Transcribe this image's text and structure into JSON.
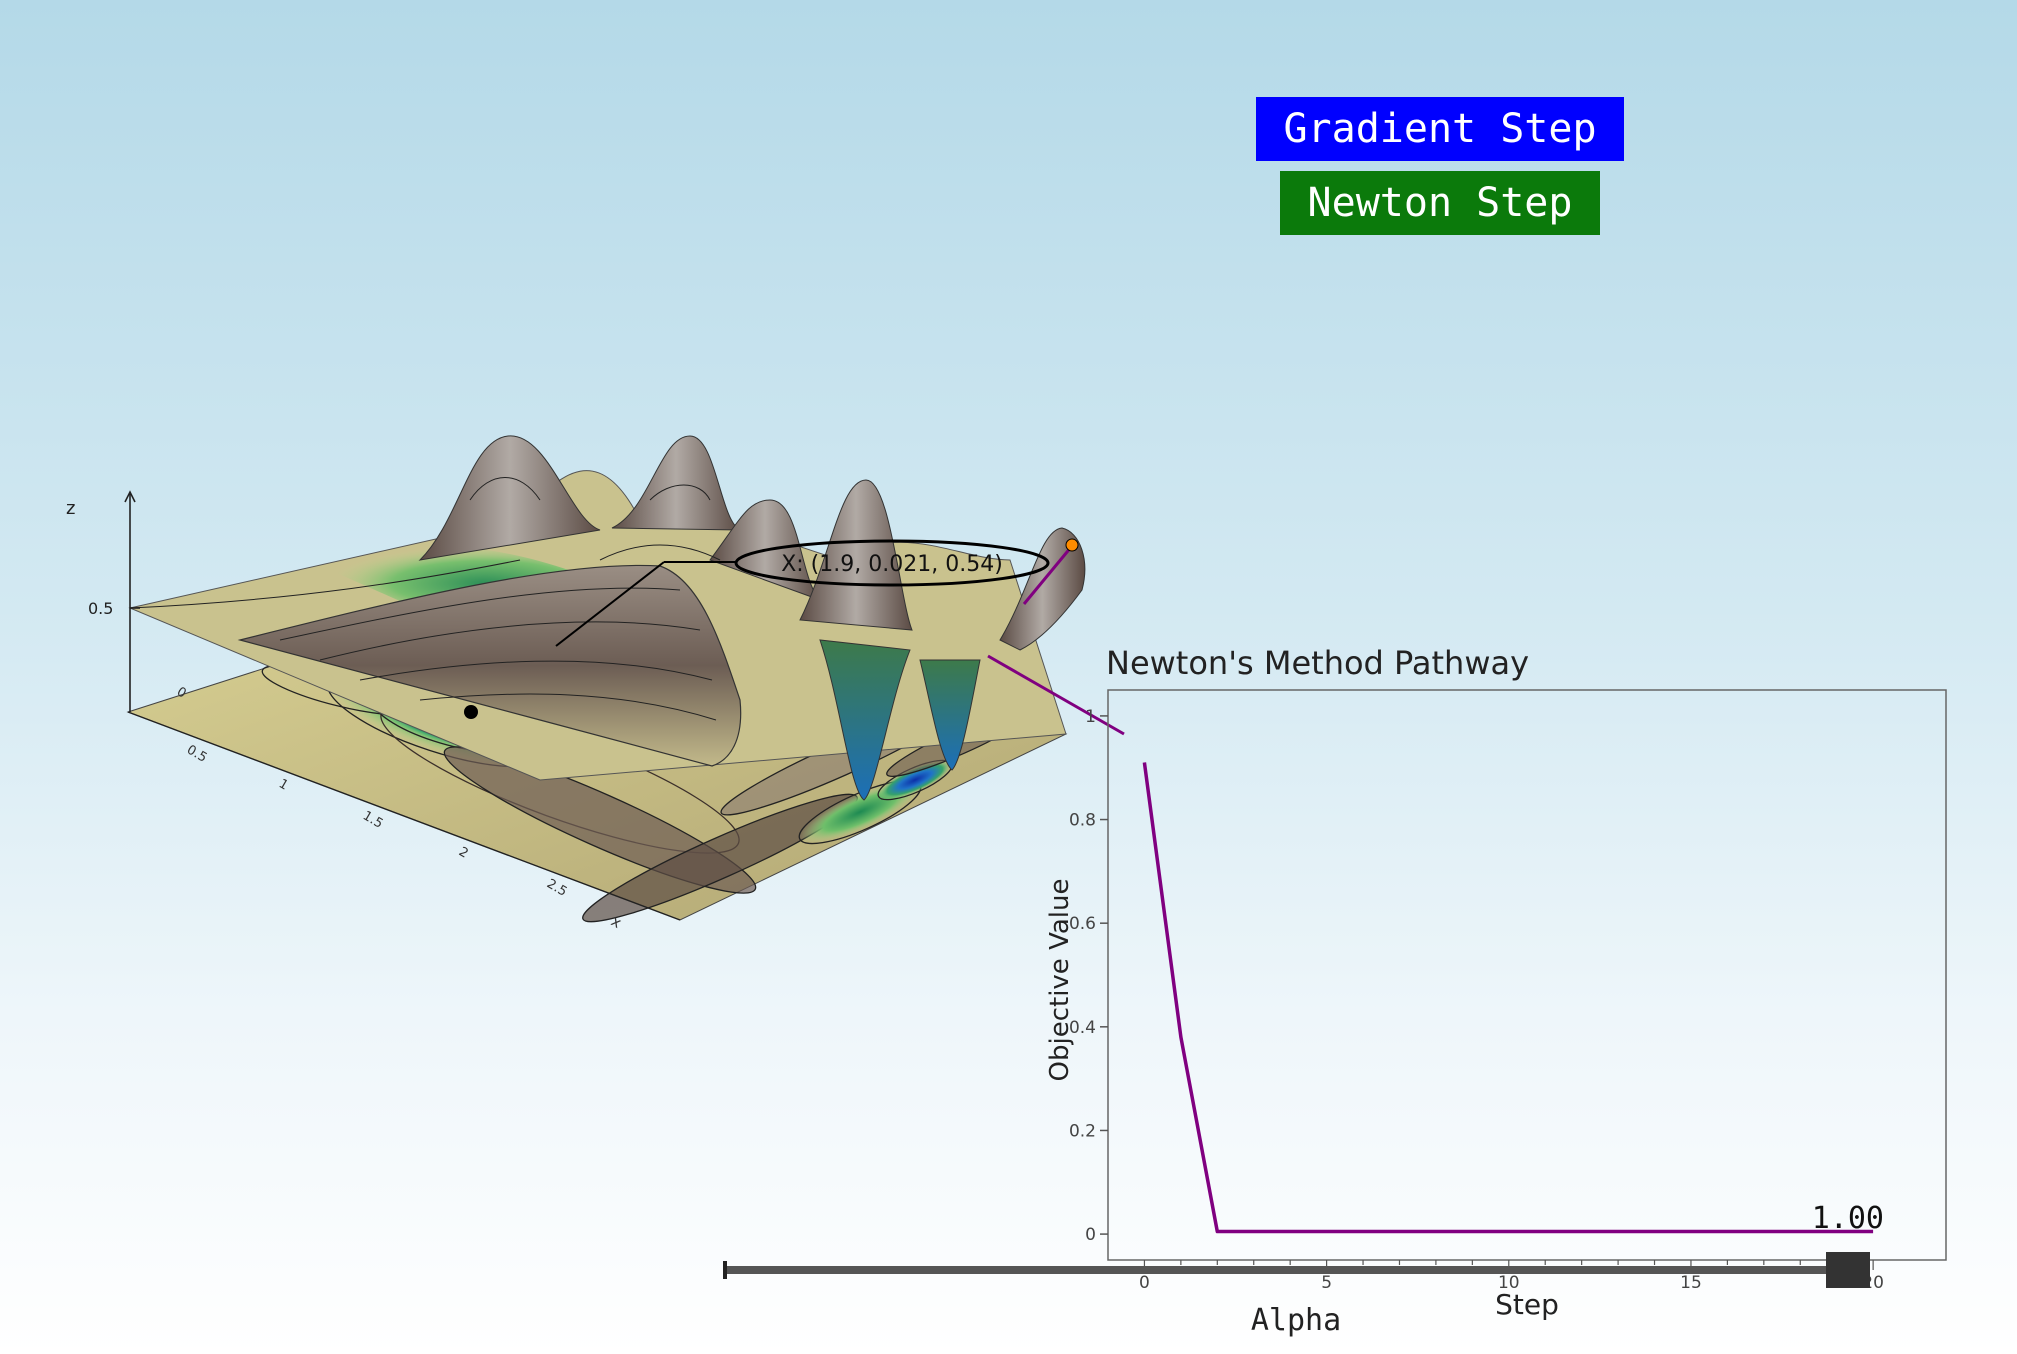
{
  "buttons": {
    "gradient": "Gradient Step",
    "newton": "Newton Step"
  },
  "surface": {
    "z_axis_label": "z",
    "z_tick": "0.5",
    "x_axis_label": "x",
    "x_ticks": [
      "0",
      "0.5",
      "1",
      "1.5",
      "2",
      "2.5"
    ],
    "tooltip": "X: (1.9, 0.021, 0.54)"
  },
  "slider": {
    "label": "Alpha",
    "value_text": "1.00",
    "value": 1.0
  },
  "colors": {
    "gradient_button": "#0000ff",
    "newton_button": "#0b7a0b",
    "path_line": "#800080",
    "marker": "#ff8c00"
  },
  "chart_data": {
    "type": "line",
    "title": "Newton's Method Pathway",
    "xlabel": "Step",
    "ylabel": "Objective Value",
    "xlim": [
      -1,
      22
    ],
    "ylim": [
      -0.05,
      1.05
    ],
    "x_ticks": [
      0,
      5,
      10,
      15,
      20
    ],
    "x_tick_labels": [
      "0",
      "5",
      "10",
      "15",
      "20"
    ],
    "y_ticks": [
      0,
      0.2,
      0.4,
      0.6,
      0.8,
      1
    ],
    "y_tick_labels": [
      "0",
      "0.2",
      "0.4",
      "0.6",
      "0.8",
      "1"
    ],
    "series": [
      {
        "x": [
          0,
          1,
          2,
          3,
          4,
          5,
          6,
          7,
          8,
          9,
          10,
          11,
          12,
          13,
          14,
          15,
          16,
          17,
          18,
          19,
          20
        ],
        "values": [
          0.91,
          0.38,
          0.005,
          0.005,
          0.005,
          0.005,
          0.005,
          0.005,
          0.005,
          0.005,
          0.005,
          0.005,
          0.005,
          0.005,
          0.005,
          0.005,
          0.005,
          0.005,
          0.005,
          0.005,
          0.005
        ],
        "color": "#800080"
      }
    ],
    "grid": false
  }
}
